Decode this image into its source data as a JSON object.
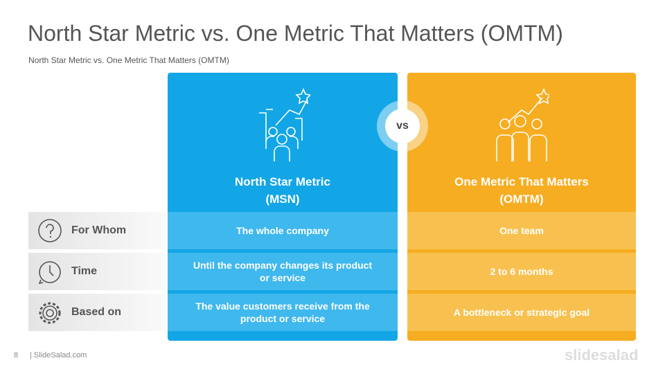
{
  "header": {
    "title": "North Star Metric vs. One Metric That Matters (OMTM)",
    "subtitle": "North Star Metric vs. One Metric That Matters (OMTM)"
  },
  "columns": [
    {
      "heading": [
        "North Star Metric",
        "(MSN)"
      ],
      "cells": [
        "The whole company",
        "Until the company changes its product or service",
        "The value customers receive from the product or service"
      ]
    },
    {
      "heading": [
        "One Metric That Matters",
        "(OMTM)"
      ],
      "cells": [
        "One team",
        "2 to 6 months",
        "A bottleneck or strategic goal"
      ]
    }
  ],
  "vs": "vs",
  "rows": [
    "For Whom",
    "Time",
    "Based on"
  ],
  "footer": {
    "page": "8",
    "site": "| SlideSalad.com",
    "logo": "slidesalad"
  }
}
